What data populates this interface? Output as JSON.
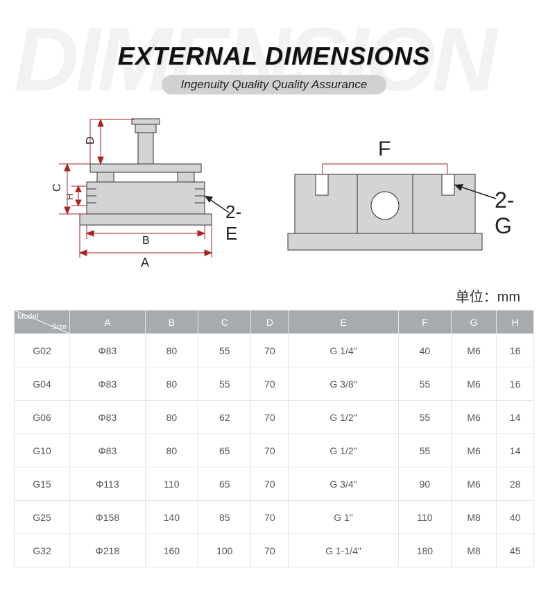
{
  "background_text": "DIMENSION",
  "title": "EXTERNAL DIMENSIONS",
  "subtitle": "Ingenuity Quality Quality Assurance",
  "unit_label": "单位：mm",
  "diagram": {
    "body_fill": "#d2d4d6",
    "dim_line_color": "#aa2222",
    "outline_color": "#333333",
    "callout_left": "2-E",
    "callout_right": "2-G",
    "dim_labels": {
      "A": "A",
      "B": "B",
      "C": "C",
      "D": "D",
      "H": "H",
      "F": "F"
    }
  },
  "table": {
    "header_corner": {
      "top": "Model",
      "bottom": "Size"
    },
    "columns": [
      "A",
      "B",
      "C",
      "D",
      "E",
      "F",
      "G",
      "H"
    ],
    "rows": [
      {
        "model": "G02",
        "cells": [
          "Φ83",
          "80",
          "55",
          "70",
          "G 1/4\"",
          "40",
          "M6",
          "16"
        ]
      },
      {
        "model": "G04",
        "cells": [
          "Φ83",
          "80",
          "55",
          "70",
          "G 3/8\"",
          "55",
          "M6",
          "16"
        ]
      },
      {
        "model": "G06",
        "cells": [
          "Φ83",
          "80",
          "62",
          "70",
          "G 1/2\"",
          "55",
          "M6",
          "14"
        ]
      },
      {
        "model": "G10",
        "cells": [
          "Φ83",
          "80",
          "65",
          "70",
          "G 1/2\"",
          "55",
          "M6",
          "14"
        ]
      },
      {
        "model": "G15",
        "cells": [
          "Φ113",
          "110",
          "65",
          "70",
          "G 3/4\"",
          "90",
          "M6",
          "28"
        ]
      },
      {
        "model": "G25",
        "cells": [
          "Φ158",
          "140",
          "85",
          "70",
          "G 1\"",
          "110",
          "M8",
          "40"
        ]
      },
      {
        "model": "G32",
        "cells": [
          "Φ218",
          "160",
          "100",
          "70",
          "G 1-1/4\"",
          "180",
          "M8",
          "45"
        ]
      }
    ]
  },
  "styles": {
    "header_bg": "#a7abb0",
    "header_fg": "#ffffff",
    "cell_border": "#e5e5e5",
    "text_color": "#555555"
  }
}
